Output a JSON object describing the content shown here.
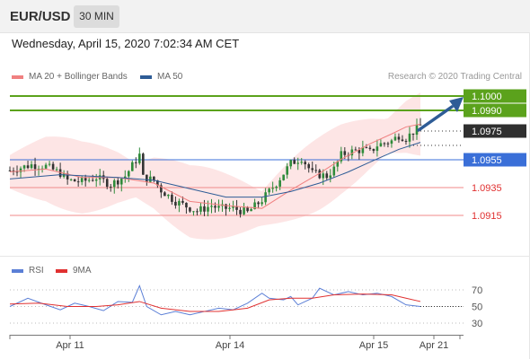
{
  "header": {
    "symbol": "EUR/USD",
    "timeframe": "30 MIN",
    "datetime": "Wednesday, April 15, 2020 7:02:34 AM CET"
  },
  "legend": {
    "ma20": {
      "label": "MA 20 + Bollinger Bands",
      "color": "#f08080"
    },
    "ma50": {
      "label": "MA 50",
      "color": "#2e5c96"
    },
    "credit": "Research © 2020 Trading Central"
  },
  "rsi_legend": {
    "rsi": {
      "label": "RSI",
      "color": "#5b7fd6"
    },
    "ma9": {
      "label": "9MA",
      "color": "#e03030"
    }
  },
  "chart_data": {
    "type": "candlestick",
    "title": "EUR/USD",
    "ylim": [
      1.0865,
      1.1003
    ],
    "x_ticks": [
      "Apr 11",
      "Apr 14",
      "Apr 15",
      "Apr 21"
    ],
    "levels": [
      {
        "value": "1.1000",
        "kind": "resistance",
        "color": "#5ba21c"
      },
      {
        "value": "1.0990",
        "kind": "resistance",
        "color": "#5ba21c"
      },
      {
        "value": "1.0975",
        "kind": "current",
        "color": "#333333"
      },
      {
        "value": "1.0955",
        "kind": "pivot",
        "color": "#3a6fd8"
      },
      {
        "value": "1.0935",
        "kind": "support",
        "color": "#e03030"
      },
      {
        "value": "1.0915",
        "kind": "support",
        "color": "#e03030"
      }
    ],
    "price_path": [
      [
        0,
        1.0947
      ],
      [
        6,
        1.0951
      ],
      [
        10,
        1.095
      ],
      [
        14,
        1.0945
      ],
      [
        16,
        1.094
      ],
      [
        20,
        1.0939
      ],
      [
        24,
        1.0942
      ],
      [
        28,
        1.0937
      ],
      [
        32,
        1.0943
      ],
      [
        36,
        1.0958
      ],
      [
        37,
        1.0942
      ],
      [
        40,
        1.094
      ],
      [
        42,
        1.0933
      ],
      [
        46,
        1.0925
      ],
      [
        52,
        1.0918
      ],
      [
        56,
        1.0922
      ],
      [
        58,
        1.092
      ],
      [
        62,
        1.092
      ],
      [
        66,
        1.0917
      ],
      [
        70,
        1.0926
      ],
      [
        74,
        1.0938
      ],
      [
        78,
        1.0952
      ],
      [
        81,
        1.0956
      ],
      [
        84,
        1.0945
      ],
      [
        88,
        1.0943
      ],
      [
        90,
        1.0948
      ],
      [
        92,
        1.0958
      ],
      [
        94,
        1.096
      ],
      [
        98,
        1.0962
      ],
      [
        100,
        1.096
      ],
      [
        102,
        1.0965
      ],
      [
        106,
        1.0968
      ],
      [
        108,
        1.0972
      ],
      [
        110,
        1.097
      ],
      [
        114,
        1.0979
      ]
    ],
    "ma20_path": [
      [
        0,
        1.0946
      ],
      [
        10,
        1.0948
      ],
      [
        20,
        1.0942
      ],
      [
        30,
        1.0942
      ],
      [
        40,
        1.0938
      ],
      [
        50,
        1.0925
      ],
      [
        60,
        1.0922
      ],
      [
        70,
        1.092
      ],
      [
        78,
        1.0933
      ],
      [
        86,
        1.0945
      ],
      [
        92,
        1.0955
      ],
      [
        100,
        1.0966
      ],
      [
        106,
        1.0973
      ],
      [
        110,
        1.0978
      ],
      [
        114,
        1.098
      ]
    ],
    "ma50_path": [
      [
        0,
        1.0941
      ],
      [
        14,
        1.0944
      ],
      [
        30,
        1.0942
      ],
      [
        40,
        1.094
      ],
      [
        50,
        1.0934
      ],
      [
        60,
        1.0928
      ],
      [
        70,
        1.0928
      ],
      [
        78,
        1.0932
      ],
      [
        86,
        1.0938
      ],
      [
        94,
        1.0946
      ],
      [
        100,
        1.0953
      ],
      [
        108,
        1.0962
      ],
      [
        114,
        1.0967
      ]
    ],
    "rsi": {
      "levels": [
        "70",
        "50",
        "30"
      ],
      "ylim": [
        20,
        80
      ],
      "rsi_path": [
        [
          0,
          50
        ],
        [
          5,
          60
        ],
        [
          10,
          52
        ],
        [
          14,
          46
        ],
        [
          18,
          54
        ],
        [
          22,
          50
        ],
        [
          26,
          45
        ],
        [
          30,
          56
        ],
        [
          34,
          55
        ],
        [
          36,
          75
        ],
        [
          38,
          50
        ],
        [
          42,
          40
        ],
        [
          46,
          44
        ],
        [
          50,
          40
        ],
        [
          54,
          44
        ],
        [
          58,
          48
        ],
        [
          62,
          46
        ],
        [
          66,
          54
        ],
        [
          70,
          66
        ],
        [
          72,
          60
        ],
        [
          76,
          58
        ],
        [
          78,
          62
        ],
        [
          80,
          52
        ],
        [
          84,
          60
        ],
        [
          86,
          72
        ],
        [
          90,
          64
        ],
        [
          94,
          68
        ],
        [
          98,
          64
        ],
        [
          102,
          66
        ],
        [
          106,
          62
        ],
        [
          110,
          52
        ],
        [
          114,
          50
        ]
      ],
      "ma9_path": [
        [
          0,
          53
        ],
        [
          8,
          54
        ],
        [
          16,
          50
        ],
        [
          24,
          50
        ],
        [
          30,
          52
        ],
        [
          36,
          56
        ],
        [
          42,
          48
        ],
        [
          50,
          44
        ],
        [
          58,
          44
        ],
        [
          66,
          48
        ],
        [
          72,
          58
        ],
        [
          78,
          60
        ],
        [
          84,
          60
        ],
        [
          90,
          64
        ],
        [
          98,
          65
        ],
        [
          106,
          64
        ],
        [
          110,
          60
        ],
        [
          114,
          56
        ]
      ]
    }
  }
}
